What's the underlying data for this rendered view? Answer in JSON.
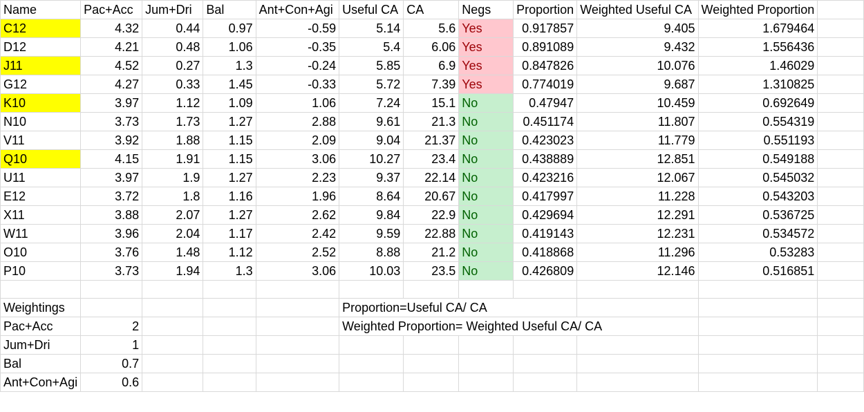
{
  "headers": [
    "Name",
    "Pac+Acc",
    "Jum+Dri",
    "Bal",
    "Ant+Con+Agi",
    "Useful CA",
    "CA",
    "Negs",
    "Proportion",
    "Weighted Useful CA",
    "Weighted Proportion"
  ],
  "rows": [
    {
      "name": "C12",
      "highlight": true,
      "pac": "4.32",
      "jum": "0.44",
      "bal": "0.97",
      "ant": "-0.59",
      "useful": "5.14",
      "ca": "5.6",
      "negs": "Yes",
      "prop": "0.917857",
      "wuseful": "9.405",
      "wprop": "1.679464"
    },
    {
      "name": "D12",
      "highlight": false,
      "pac": "4.21",
      "jum": "0.48",
      "bal": "1.06",
      "ant": "-0.35",
      "useful": "5.4",
      "ca": "6.06",
      "negs": "Yes",
      "prop": "0.891089",
      "wuseful": "9.432",
      "wprop": "1.556436"
    },
    {
      "name": "J11",
      "highlight": true,
      "pac": "4.52",
      "jum": "0.27",
      "bal": "1.3",
      "ant": "-0.24",
      "useful": "5.85",
      "ca": "6.9",
      "negs": "Yes",
      "prop": "0.847826",
      "wuseful": "10.076",
      "wprop": "1.46029"
    },
    {
      "name": "G12",
      "highlight": false,
      "pac": "4.27",
      "jum": "0.33",
      "bal": "1.45",
      "ant": "-0.33",
      "useful": "5.72",
      "ca": "7.39",
      "negs": "Yes",
      "prop": "0.774019",
      "wuseful": "9.687",
      "wprop": "1.310825"
    },
    {
      "name": "K10",
      "highlight": true,
      "pac": "3.97",
      "jum": "1.12",
      "bal": "1.09",
      "ant": "1.06",
      "useful": "7.24",
      "ca": "15.1",
      "negs": "No",
      "prop": "0.47947",
      "wuseful": "10.459",
      "wprop": "0.692649"
    },
    {
      "name": "N10",
      "highlight": false,
      "pac": "3.73",
      "jum": "1.73",
      "bal": "1.27",
      "ant": "2.88",
      "useful": "9.61",
      "ca": "21.3",
      "negs": "No",
      "prop": "0.451174",
      "wuseful": "11.807",
      "wprop": "0.554319"
    },
    {
      "name": "V11",
      "highlight": false,
      "pac": "3.92",
      "jum": "1.88",
      "bal": "1.15",
      "ant": "2.09",
      "useful": "9.04",
      "ca": "21.37",
      "negs": "No",
      "prop": "0.423023",
      "wuseful": "11.779",
      "wprop": "0.551193"
    },
    {
      "name": "Q10",
      "highlight": true,
      "pac": "4.15",
      "jum": "1.91",
      "bal": "1.15",
      "ant": "3.06",
      "useful": "10.27",
      "ca": "23.4",
      "negs": "No",
      "prop": "0.438889",
      "wuseful": "12.851",
      "wprop": "0.549188"
    },
    {
      "name": "U11",
      "highlight": false,
      "pac": "3.97",
      "jum": "1.9",
      "bal": "1.27",
      "ant": "2.23",
      "useful": "9.37",
      "ca": "22.14",
      "negs": "No",
      "prop": "0.423216",
      "wuseful": "12.067",
      "wprop": "0.545032"
    },
    {
      "name": "E12",
      "highlight": false,
      "pac": "3.72",
      "jum": "1.8",
      "bal": "1.16",
      "ant": "1.96",
      "useful": "8.64",
      "ca": "20.67",
      "negs": "No",
      "prop": "0.417997",
      "wuseful": "11.228",
      "wprop": "0.543203"
    },
    {
      "name": "X11",
      "highlight": false,
      "pac": "3.88",
      "jum": "2.07",
      "bal": "1.27",
      "ant": "2.62",
      "useful": "9.84",
      "ca": "22.9",
      "negs": "No",
      "prop": "0.429694",
      "wuseful": "12.291",
      "wprop": "0.536725"
    },
    {
      "name": "W11",
      "highlight": false,
      "pac": "3.96",
      "jum": "2.04",
      "bal": "1.17",
      "ant": "2.42",
      "useful": "9.59",
      "ca": "22.88",
      "negs": "No",
      "prop": "0.419143",
      "wuseful": "12.231",
      "wprop": "0.534572"
    },
    {
      "name": "O10",
      "highlight": false,
      "pac": "3.76",
      "jum": "1.48",
      "bal": "1.12",
      "ant": "2.52",
      "useful": "8.88",
      "ca": "21.2",
      "negs": "No",
      "prop": "0.418868",
      "wuseful": "11.296",
      "wprop": "0.53283"
    },
    {
      "name": "P10",
      "highlight": false,
      "pac": "3.73",
      "jum": "1.94",
      "bal": "1.3",
      "ant": "3.06",
      "useful": "10.03",
      "ca": "23.5",
      "negs": "No",
      "prop": "0.426809",
      "wuseful": "12.146",
      "wprop": "0.516851"
    }
  ],
  "weightings": {
    "title": "Weightings",
    "items": [
      {
        "label": "Pac+Acc",
        "value": "2"
      },
      {
        "label": "Jum+Dri",
        "value": "1"
      },
      {
        "label": "Bal",
        "value": "0.7"
      },
      {
        "label": "Ant+Con+Agi",
        "value": "0.6"
      }
    ]
  },
  "notes": {
    "proportion": "Proportion=Useful CA/ CA",
    "weighted_proportion": "Weighted Proportion= Weighted Useful CA/ CA"
  },
  "colors": {
    "highlight": "#ffff00",
    "neg_yes_fill": "#ffc7ce",
    "neg_yes_text": "#9c0006",
    "neg_no_fill": "#c6efce",
    "neg_no_text": "#006100",
    "gridline": "#d9d9d9"
  }
}
